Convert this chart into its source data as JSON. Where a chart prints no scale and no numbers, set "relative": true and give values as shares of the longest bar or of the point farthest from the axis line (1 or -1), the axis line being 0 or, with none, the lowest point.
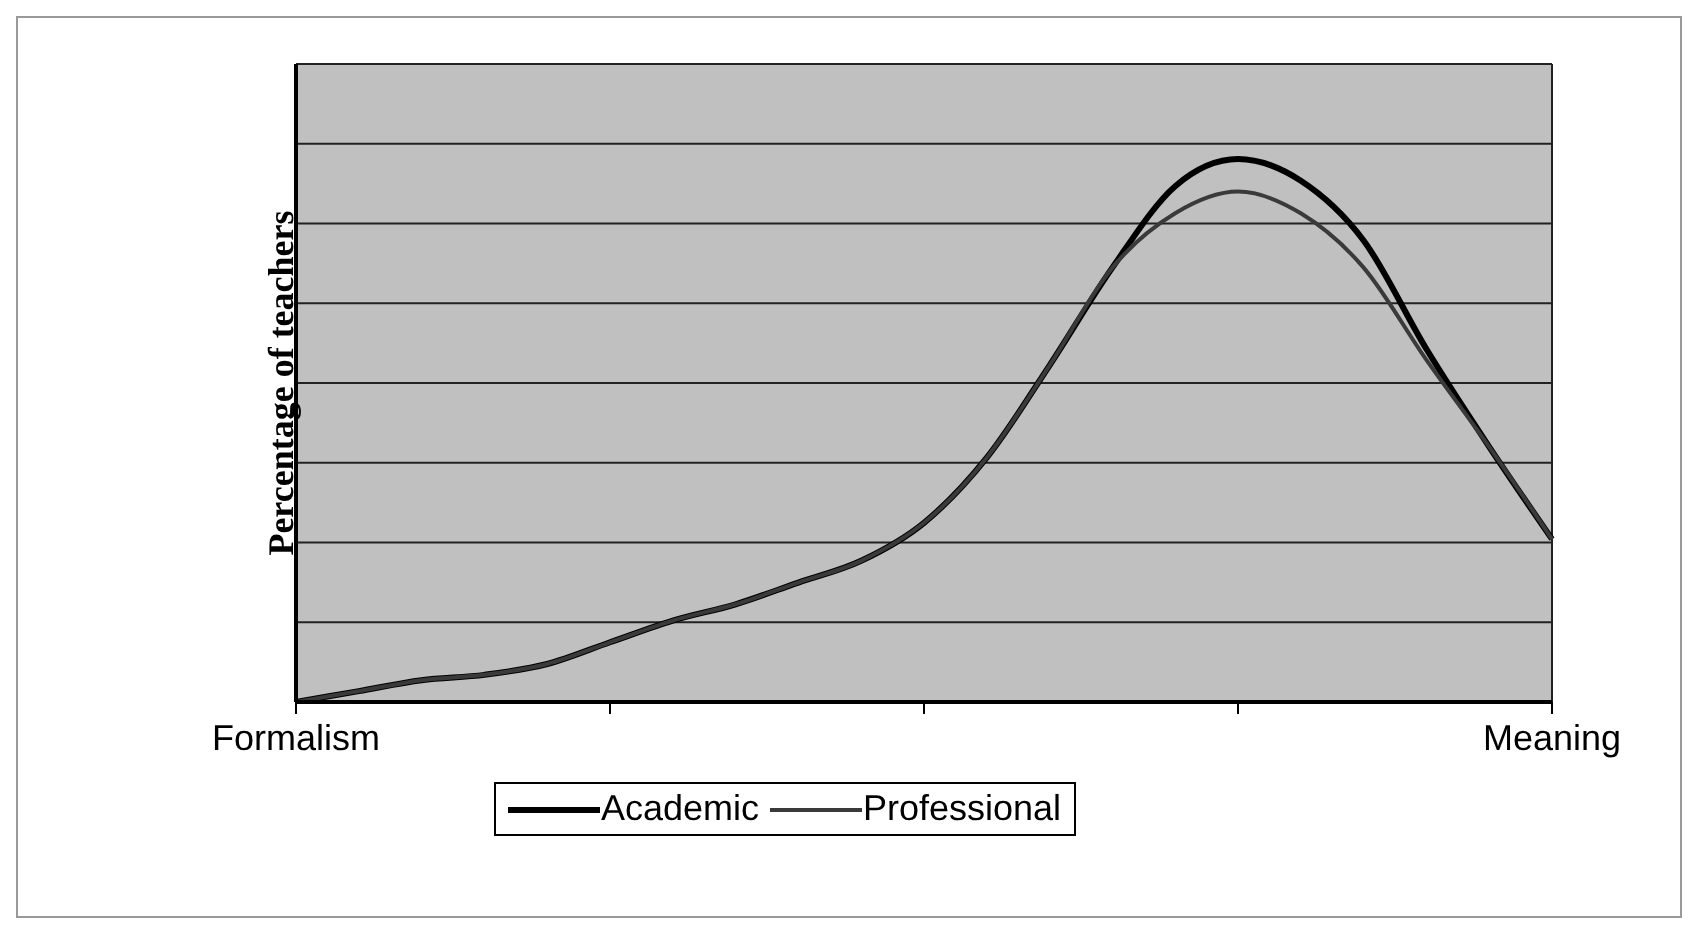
{
  "chart_data": {
    "type": "line",
    "ylabel": "Percentage of teachers",
    "relative": true,
    "grid": "y",
    "legend": "bottom",
    "marker": "none",
    "line_style": "solid",
    "categories": [
      "Formalism",
      null,
      null,
      null,
      null,
      null,
      null,
      null,
      null,
      null,
      null,
      null,
      null,
      null,
      null,
      null,
      null,
      null,
      null,
      null,
      "Meaning"
    ],
    "series": [
      {
        "name": "Academic",
        "color": "#000000",
        "values": [
          0,
          0.02,
          0.04,
          0.05,
          0.07,
          0.11,
          0.15,
          0.18,
          0.22,
          0.26,
          0.33,
          0.45,
          0.62,
          0.8,
          0.95,
          1.0,
          0.96,
          0.85,
          0.65,
          0.47,
          0.3
        ]
      },
      {
        "name": "Professional",
        "color": "#3a3a3a",
        "values": [
          0,
          0.02,
          0.04,
          0.05,
          0.07,
          0.11,
          0.15,
          0.18,
          0.22,
          0.26,
          0.33,
          0.45,
          0.62,
          0.8,
          0.9,
          0.94,
          0.9,
          0.8,
          0.63,
          0.47,
          0.3
        ]
      }
    ]
  }
}
